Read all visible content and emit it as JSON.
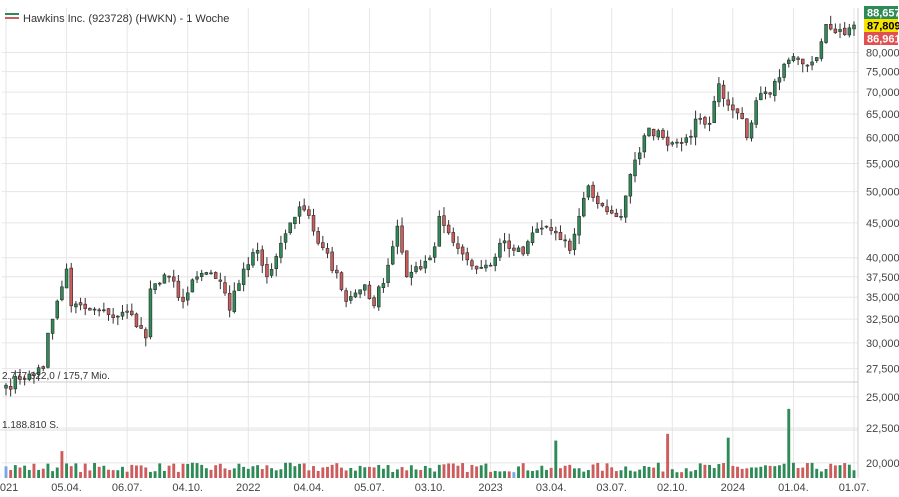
{
  "chart_data": {
    "type": "candlestick",
    "title": "Hawkins Inc. (923728) (HWKN) - 1 Woche",
    "y_scale": "log",
    "ylim": [
      19000,
      93000
    ],
    "y_ticks": [
      20000,
      22500,
      25000,
      27500,
      30000,
      32500,
      35000,
      37500,
      40000,
      45000,
      50000,
      55000,
      60000,
      65000,
      70000,
      75000,
      80000
    ],
    "y_tick_labels": [
      "20,000",
      "22,500",
      "25,000",
      "27,500",
      "30,000",
      "32,500",
      "35,000",
      "37,500",
      "40,000",
      "45,000",
      "50,000",
      "55,000",
      "60,000",
      "65,000",
      "70,000",
      "75,000",
      "80,000"
    ],
    "x_tick_labels": [
      "2021",
      "05.04.",
      "06.07.",
      "04.10.",
      "2022",
      "04.04.",
      "05.07.",
      "03.10.",
      "2023",
      "03.04.",
      "03.07.",
      "02.10.",
      "2024",
      "01.04.",
      "01.07."
    ],
    "x_tick_weeks": [
      0,
      13,
      26,
      39,
      52,
      65,
      78,
      91,
      104,
      117,
      130,
      143,
      156,
      169,
      182
    ],
    "weeks": 183,
    "price_badges": [
      {
        "label": "88,657",
        "value": 88657,
        "bg": "#2e8b57",
        "fg": "#ffffff"
      },
      {
        "label": "87,809",
        "value": 87809,
        "bg": "#f5e400",
        "fg": "#000000"
      },
      {
        "label": "86,961",
        "value": 86961,
        "bg": "#e05050",
        "fg": "#ffffff"
      }
    ],
    "volume_labels": [
      "2.777.622,0 / 175,7 Mio.",
      "1.188.810 S."
    ],
    "close_anchors": [
      [
        0,
        26000
      ],
      [
        3,
        26500
      ],
      [
        5,
        27000
      ],
      [
        8,
        27500
      ],
      [
        9,
        31000
      ],
      [
        10,
        32500
      ],
      [
        13,
        38500
      ],
      [
        14,
        34000
      ],
      [
        18,
        33500
      ],
      [
        22,
        33000
      ],
      [
        27,
        33000
      ],
      [
        29,
        31500
      ],
      [
        30,
        30500
      ],
      [
        31,
        36000
      ],
      [
        35,
        37500
      ],
      [
        38,
        34500
      ],
      [
        41,
        37500
      ],
      [
        44,
        38000
      ],
      [
        47,
        35500
      ],
      [
        48,
        33500
      ],
      [
        51,
        38500
      ],
      [
        54,
        41000
      ],
      [
        56,
        37500
      ],
      [
        59,
        42000
      ],
      [
        61,
        45000
      ],
      [
        63,
        47500
      ],
      [
        64,
        47000
      ],
      [
        67,
        42000
      ],
      [
        71,
        38000
      ],
      [
        73,
        34500
      ],
      [
        77,
        36500
      ],
      [
        79,
        34000
      ],
      [
        82,
        39000
      ],
      [
        84,
        44500
      ],
      [
        86,
        37500
      ],
      [
        89,
        38500
      ],
      [
        92,
        41500
      ],
      [
        93,
        46000
      ],
      [
        95,
        43500
      ],
      [
        98,
        40500
      ],
      [
        101,
        38500
      ],
      [
        104,
        39000
      ],
      [
        106,
        42000
      ],
      [
        109,
        41000
      ],
      [
        111,
        40500
      ],
      [
        113,
        43500
      ],
      [
        116,
        44500
      ],
      [
        119,
        42500
      ],
      [
        121,
        41000
      ],
      [
        123,
        46000
      ],
      [
        125,
        51000
      ],
      [
        127,
        48000
      ],
      [
        130,
        46500
      ],
      [
        132,
        46000
      ],
      [
        134,
        53000
      ],
      [
        136,
        57000
      ],
      [
        138,
        62000
      ],
      [
        141,
        60000
      ],
      [
        143,
        59000
      ],
      [
        146,
        60000
      ],
      [
        149,
        64000
      ],
      [
        151,
        63000
      ],
      [
        153,
        72000
      ],
      [
        155,
        67000
      ],
      [
        158,
        64000
      ],
      [
        159,
        60000
      ],
      [
        161,
        68000
      ],
      [
        164,
        69500
      ],
      [
        166,
        73500
      ],
      [
        168,
        78000
      ],
      [
        171,
        77000
      ],
      [
        173,
        77500
      ],
      [
        175,
        83000
      ],
      [
        176,
        88000
      ],
      [
        179,
        86500
      ],
      [
        181,
        86961
      ],
      [
        182,
        87809
      ]
    ],
    "volume_tall_bars": [
      [
        12,
        0.28,
        "down"
      ],
      [
        118,
        0.39,
        "up"
      ],
      [
        142,
        0.46,
        "down"
      ],
      [
        155,
        0.42,
        "up"
      ],
      [
        168,
        0.72,
        "up"
      ]
    ],
    "volume_ylim_fraction": [
      0,
      1
    ],
    "colors": {
      "up": "#2e8b57",
      "down": "#cd5c5c",
      "wick": "#333333",
      "grid": "#e6e6e6"
    }
  }
}
